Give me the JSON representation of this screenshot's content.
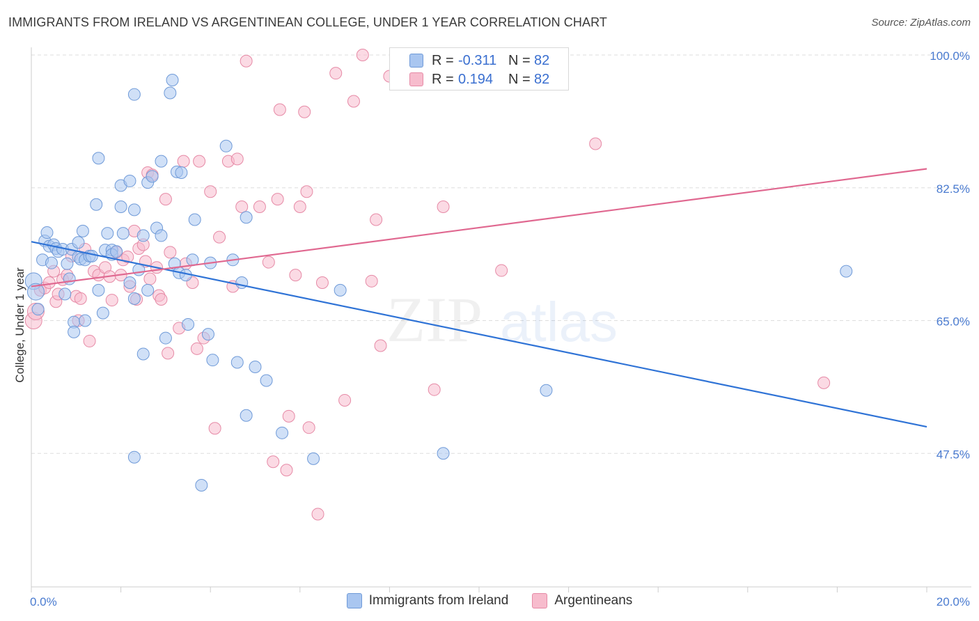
{
  "header": {
    "title": "IMMIGRANTS FROM IRELAND VS ARGENTINEAN COLLEGE, UNDER 1 YEAR CORRELATION CHART",
    "source": "Source: ZipAtlas.com"
  },
  "watermark": {
    "text_zip": "ZIP",
    "text_atlas": "atlas"
  },
  "colors": {
    "blue_fill": "#a9c6f0",
    "blue_stroke": "#6f9ad8",
    "blue_line": "#2f73d6",
    "pink_fill": "#f7bccd",
    "pink_stroke": "#e68aa6",
    "pink_line": "#e06890",
    "axis_label": "#4a7bd0",
    "grid": "#dddddd"
  },
  "stats": [
    {
      "r_label": "R =",
      "r_value": "-0.311",
      "n_label": "N =",
      "n_value": "82"
    },
    {
      "r_label": "R =",
      "r_value": "0.194",
      "n_label": "N =",
      "n_value": "82"
    }
  ],
  "chart_data": {
    "type": "scatter",
    "title": "IMMIGRANTS FROM IRELAND VS ARGENTINEAN COLLEGE, UNDER 1 YEAR CORRELATION CHART",
    "xlabel": "",
    "ylabel": "College, Under 1 year",
    "xlim": [
      0,
      20
    ],
    "ylim": [
      34,
      102.5
    ],
    "x_tick_labels": [
      "0.0%",
      "20.0%"
    ],
    "x_ticks": [
      0,
      20
    ],
    "y_ticks": [
      47.5,
      65.0,
      82.5,
      100.0
    ],
    "y_tick_labels": [
      "47.5%",
      "65.0%",
      "82.5%",
      "100.0%"
    ],
    "grid": true,
    "legend_position": "bottom-center",
    "series": [
      {
        "name": "Immigrants from Ireland",
        "color": "#a9c6f0",
        "trend": {
          "x": [
            0,
            20
          ],
          "y": [
            75.4,
            51.0
          ]
        },
        "points": [
          [
            0.05,
            70.2
          ],
          [
            0.1,
            68.8
          ],
          [
            0.15,
            66.5
          ],
          [
            0.25,
            73.0
          ],
          [
            0.3,
            75.5
          ],
          [
            0.35,
            76.6
          ],
          [
            0.4,
            74.8
          ],
          [
            0.45,
            72.6
          ],
          [
            0.5,
            75.0
          ],
          [
            0.55,
            74.5
          ],
          [
            0.6,
            74.1
          ],
          [
            0.7,
            74.4
          ],
          [
            0.75,
            68.5
          ],
          [
            0.8,
            72.5
          ],
          [
            0.85,
            70.5
          ],
          [
            0.9,
            74.4
          ],
          [
            0.95,
            64.8
          ],
          [
            0.95,
            63.5
          ],
          [
            1.05,
            75.3
          ],
          [
            1.05,
            73.4
          ],
          [
            1.1,
            73.1
          ],
          [
            1.15,
            76.8
          ],
          [
            1.2,
            73.0
          ],
          [
            1.3,
            73.5
          ],
          [
            1.35,
            73.5
          ],
          [
            1.45,
            80.3
          ],
          [
            1.5,
            69.0
          ],
          [
            1.5,
            86.4
          ],
          [
            1.6,
            66.0
          ],
          [
            1.65,
            74.3
          ],
          [
            1.7,
            76.5
          ],
          [
            1.8,
            74.3
          ],
          [
            1.8,
            73.7
          ],
          [
            1.9,
            74.1
          ],
          [
            2.0,
            82.8
          ],
          [
            2.0,
            80.0
          ],
          [
            2.05,
            76.5
          ],
          [
            2.2,
            83.4
          ],
          [
            2.3,
            67.9
          ],
          [
            2.3,
            79.6
          ],
          [
            2.3,
            94.8
          ],
          [
            2.4,
            71.7
          ],
          [
            2.5,
            60.6
          ],
          [
            2.5,
            76.2
          ],
          [
            2.6,
            69.0
          ],
          [
            2.6,
            83.2
          ],
          [
            2.7,
            84.0
          ],
          [
            2.8,
            77.2
          ],
          [
            2.9,
            76.2
          ],
          [
            2.9,
            86.0
          ],
          [
            3.0,
            62.7
          ],
          [
            3.1,
            95.0
          ],
          [
            3.15,
            96.7
          ],
          [
            3.2,
            72.5
          ],
          [
            3.25,
            84.6
          ],
          [
            3.3,
            71.3
          ],
          [
            3.35,
            84.5
          ],
          [
            3.45,
            71.0
          ],
          [
            3.5,
            64.5
          ],
          [
            3.6,
            73.0
          ],
          [
            3.65,
            78.3
          ],
          [
            3.95,
            63.2
          ],
          [
            4.0,
            72.6
          ],
          [
            4.05,
            59.8
          ],
          [
            4.35,
            88.0
          ],
          [
            4.5,
            73.0
          ],
          [
            4.6,
            59.5
          ],
          [
            4.7,
            70.0
          ],
          [
            4.8,
            78.6
          ],
          [
            4.8,
            52.5
          ],
          [
            5.0,
            58.9
          ],
          [
            5.25,
            57.1
          ],
          [
            5.6,
            50.2
          ],
          [
            6.3,
            46.8
          ],
          [
            6.9,
            69.0
          ],
          [
            9.2,
            47.5
          ],
          [
            11.5,
            55.8
          ],
          [
            18.2,
            71.5
          ],
          [
            1.2,
            65.0
          ],
          [
            2.3,
            47.0
          ],
          [
            3.8,
            43.3
          ],
          [
            2.2,
            70.0
          ]
        ]
      },
      {
        "name": "Argentineans",
        "color": "#f7bccd",
        "trend": {
          "x": [
            0,
            20
          ],
          "y": [
            69.5,
            85.0
          ]
        },
        "points": [
          [
            0.05,
            65.0
          ],
          [
            0.1,
            66.2
          ],
          [
            0.2,
            69.0
          ],
          [
            0.3,
            69.3
          ],
          [
            0.4,
            70.0
          ],
          [
            0.5,
            71.5
          ],
          [
            0.55,
            67.5
          ],
          [
            0.6,
            68.5
          ],
          [
            0.7,
            70.4
          ],
          [
            0.8,
            71.0
          ],
          [
            0.9,
            73.5
          ],
          [
            1.0,
            68.2
          ],
          [
            1.05,
            65.0
          ],
          [
            1.1,
            67.9
          ],
          [
            1.2,
            74.4
          ],
          [
            1.3,
            62.3
          ],
          [
            1.4,
            71.5
          ],
          [
            1.5,
            71.0
          ],
          [
            1.65,
            72.0
          ],
          [
            1.75,
            70.8
          ],
          [
            1.8,
            67.7
          ],
          [
            1.9,
            74.0
          ],
          [
            2.0,
            71.0
          ],
          [
            2.05,
            73.0
          ],
          [
            2.15,
            73.4
          ],
          [
            2.2,
            69.5
          ],
          [
            2.3,
            76.8
          ],
          [
            2.35,
            67.8
          ],
          [
            2.4,
            74.5
          ],
          [
            2.5,
            75.0
          ],
          [
            2.55,
            72.8
          ],
          [
            2.6,
            84.5
          ],
          [
            2.65,
            70.5
          ],
          [
            2.7,
            84.2
          ],
          [
            2.8,
            72.0
          ],
          [
            2.85,
            68.3
          ],
          [
            2.9,
            67.8
          ],
          [
            3.0,
            81.0
          ],
          [
            3.05,
            60.7
          ],
          [
            3.1,
            74.0
          ],
          [
            3.3,
            64.0
          ],
          [
            3.4,
            86.0
          ],
          [
            3.45,
            72.5
          ],
          [
            3.6,
            70.0
          ],
          [
            3.7,
            61.3
          ],
          [
            3.75,
            86.0
          ],
          [
            3.85,
            62.7
          ],
          [
            4.0,
            82.0
          ],
          [
            4.1,
            50.8
          ],
          [
            4.2,
            76.0
          ],
          [
            4.4,
            86.0
          ],
          [
            4.5,
            69.5
          ],
          [
            4.6,
            86.3
          ],
          [
            4.7,
            80.0
          ],
          [
            4.8,
            99.2
          ],
          [
            5.1,
            80.0
          ],
          [
            5.3,
            72.7
          ],
          [
            5.4,
            46.4
          ],
          [
            5.5,
            81.0
          ],
          [
            5.55,
            92.8
          ],
          [
            5.7,
            45.3
          ],
          [
            5.75,
            52.4
          ],
          [
            5.9,
            71.0
          ],
          [
            6.0,
            80.0
          ],
          [
            6.1,
            92.5
          ],
          [
            6.15,
            82.0
          ],
          [
            6.2,
            50.9
          ],
          [
            6.4,
            39.5
          ],
          [
            6.5,
            70.0
          ],
          [
            6.8,
            97.6
          ],
          [
            7.0,
            54.5
          ],
          [
            7.2,
            93.9
          ],
          [
            7.4,
            100.0
          ],
          [
            7.6,
            70.2
          ],
          [
            7.7,
            78.3
          ],
          [
            7.8,
            61.7
          ],
          [
            8.0,
            97.2
          ],
          [
            9.0,
            55.9
          ],
          [
            9.2,
            80.0
          ],
          [
            10.5,
            71.6
          ],
          [
            12.6,
            88.3
          ],
          [
            17.7,
            56.8
          ]
        ]
      }
    ]
  }
}
